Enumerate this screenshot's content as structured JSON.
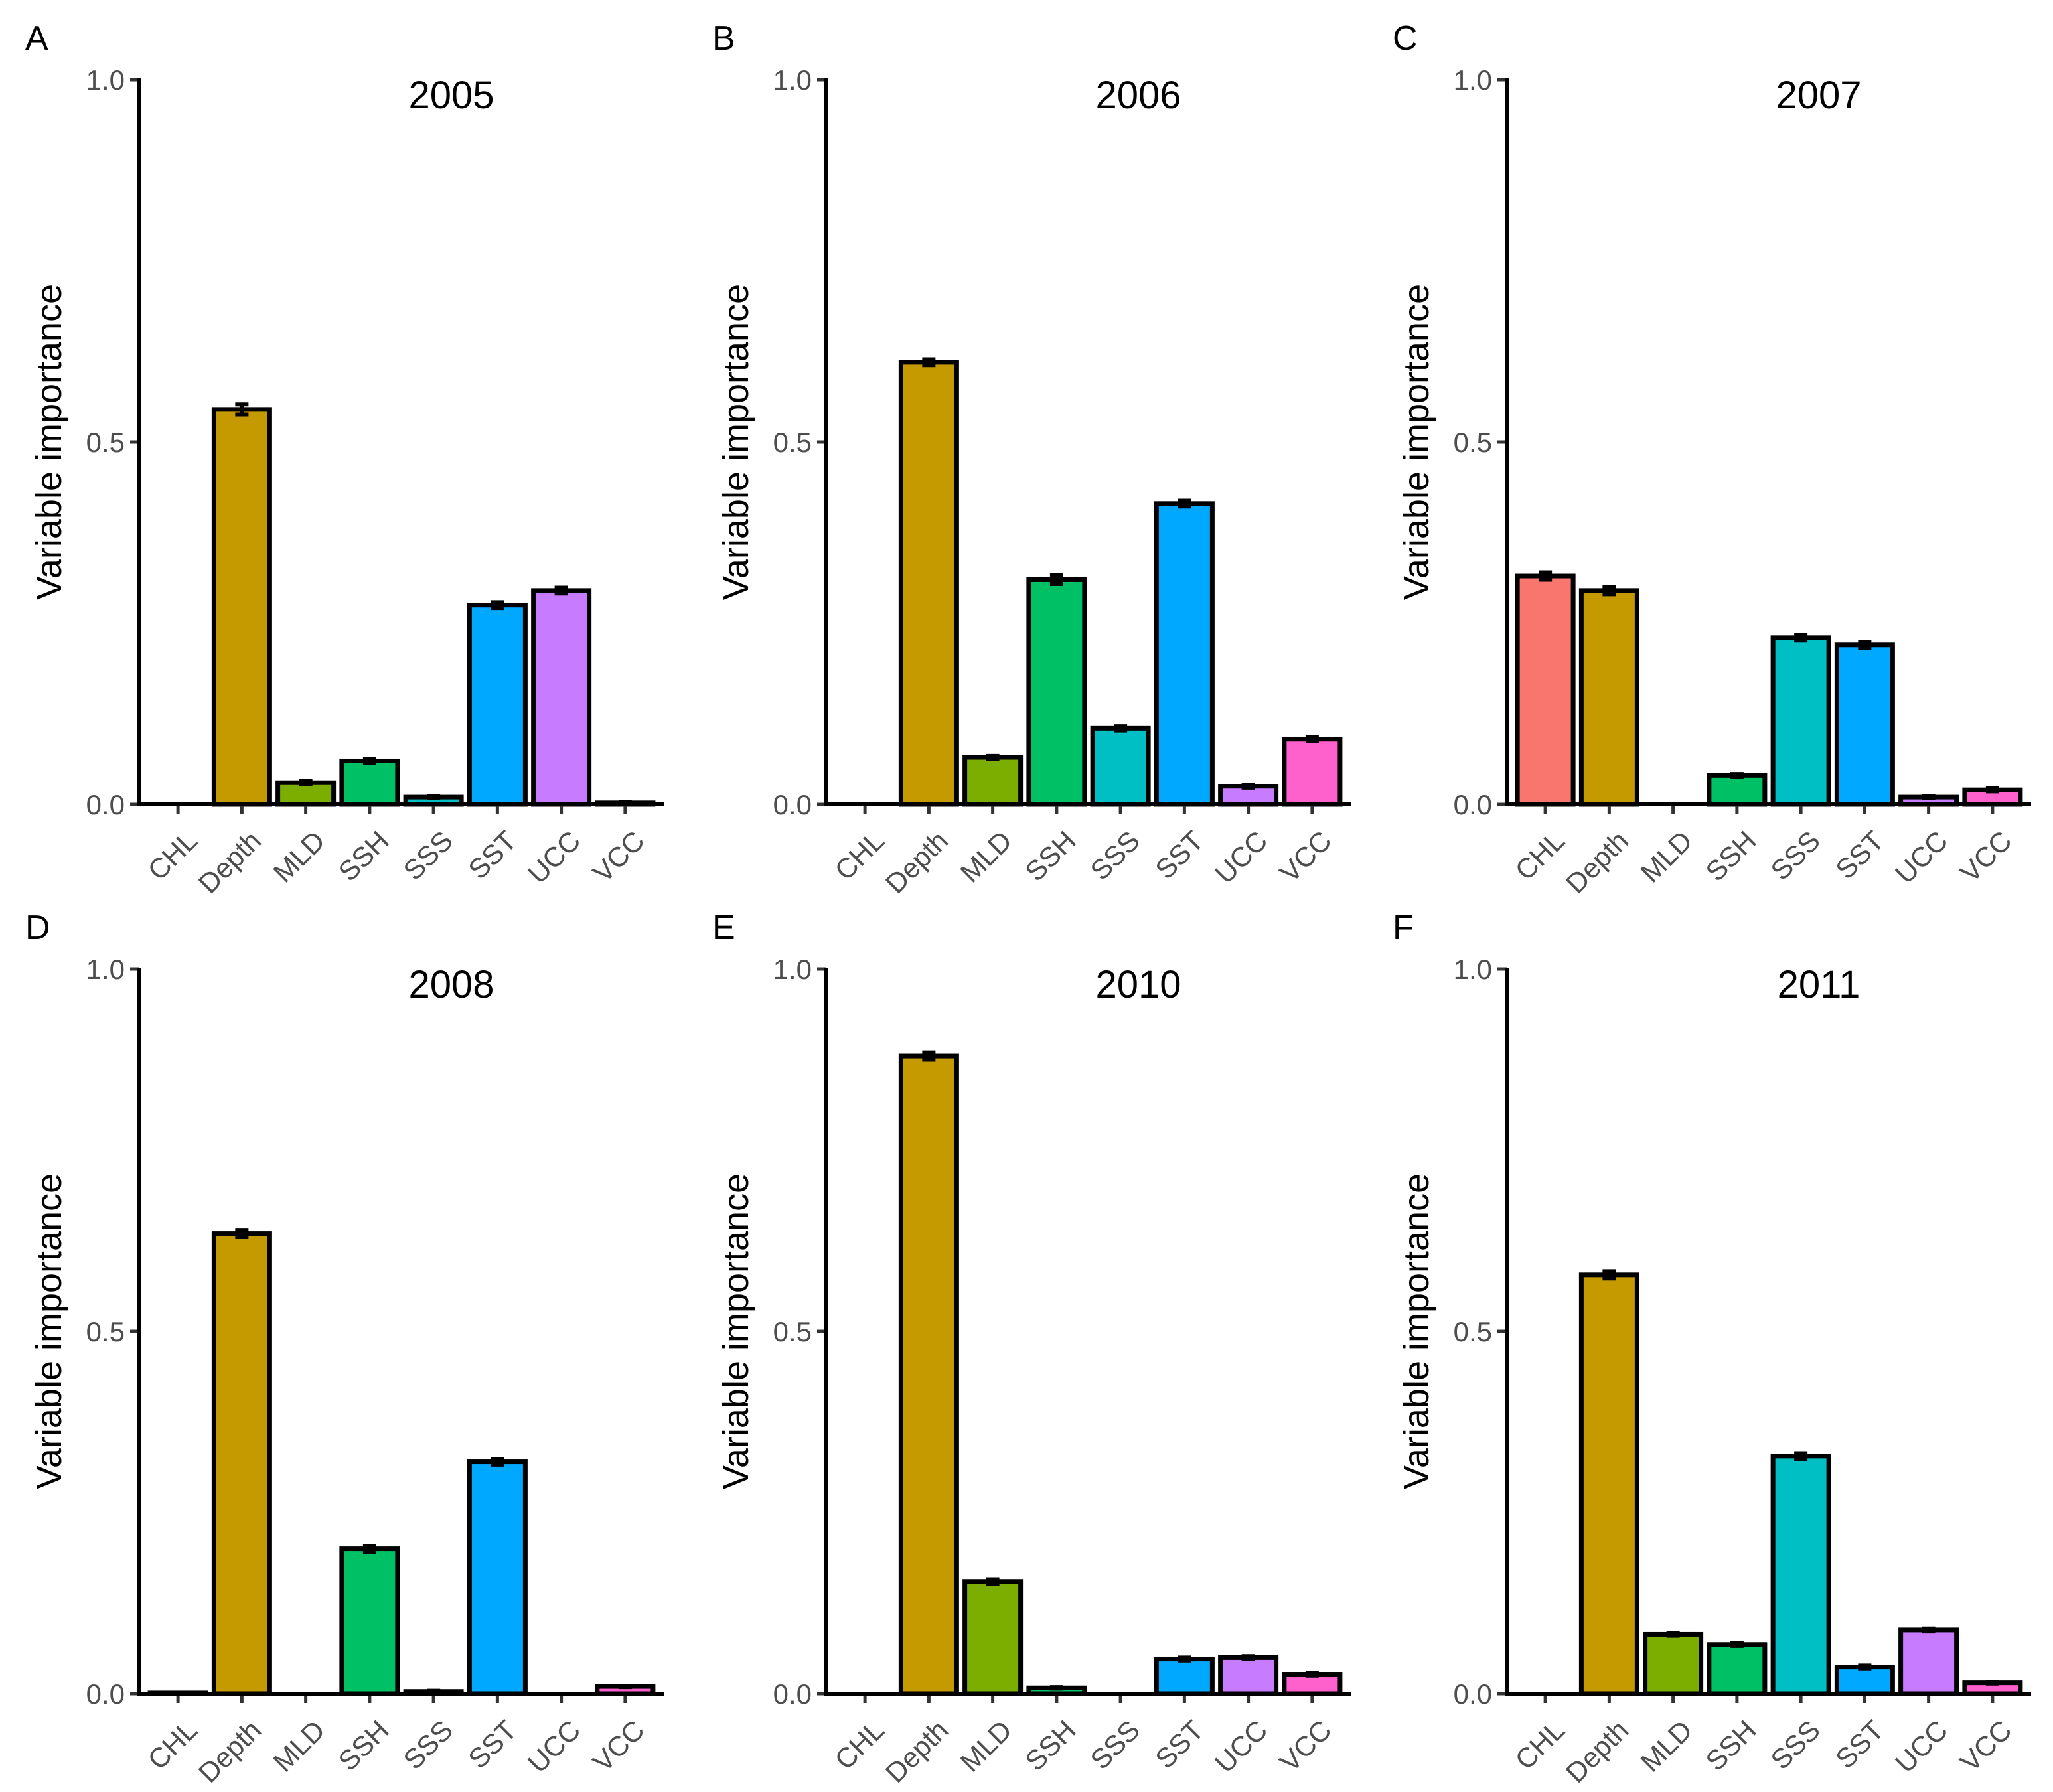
{
  "chart_data": [
    {
      "panel": "A",
      "type": "bar",
      "title": "2005",
      "xlabel": "",
      "ylabel": "Variable importance",
      "ylim": [
        0,
        1.0
      ],
      "yticks": [
        "0.0",
        "0.5",
        "1.0"
      ],
      "categories": [
        "CHL",
        "Depth",
        "MLD",
        "SSH",
        "SSS",
        "SST",
        "UCC",
        "VCC"
      ],
      "values": [
        0.0,
        0.545,
        0.03,
        0.06,
        0.01,
        0.275,
        0.295,
        0.002
      ],
      "errors": [
        0.0,
        0.007,
        0.002,
        0.003,
        0.001,
        0.004,
        0.004,
        0.001
      ],
      "colors": [
        "#F8766D",
        "#C49A00",
        "#7CAE00",
        "#00C066",
        "#00BFC4",
        "#00A9FF",
        "#C77CFF",
        "#FF61CC"
      ]
    },
    {
      "panel": "B",
      "type": "bar",
      "title": "2006",
      "xlabel": "",
      "ylabel": "Variable importance",
      "ylim": [
        0,
        1.0
      ],
      "yticks": [
        "0.0",
        "0.5",
        "1.0"
      ],
      "categories": [
        "CHL",
        "Depth",
        "MLD",
        "SSH",
        "SSS",
        "SST",
        "UCC",
        "VCC"
      ],
      "values": [
        0.0,
        0.61,
        0.065,
        0.31,
        0.105,
        0.415,
        0.025,
        0.09
      ],
      "errors": [
        0.0,
        0.004,
        0.002,
        0.006,
        0.003,
        0.004,
        0.002,
        0.003
      ],
      "colors": [
        "#F8766D",
        "#C49A00",
        "#7CAE00",
        "#00C066",
        "#00BFC4",
        "#00A9FF",
        "#C77CFF",
        "#FF61CC"
      ]
    },
    {
      "panel": "C",
      "type": "bar",
      "title": "2007",
      "xlabel": "",
      "ylabel": "Variable importance",
      "ylim": [
        0,
        1.0
      ],
      "yticks": [
        "0.0",
        "0.5",
        "1.0"
      ],
      "categories": [
        "CHL",
        "Depth",
        "MLD",
        "SSH",
        "SSS",
        "SST",
        "UCC",
        "VCC"
      ],
      "values": [
        0.315,
        0.295,
        0.0,
        0.04,
        0.23,
        0.22,
        0.01,
        0.02
      ],
      "errors": [
        0.005,
        0.005,
        0.0,
        0.002,
        0.004,
        0.004,
        0.001,
        0.002
      ],
      "colors": [
        "#F8766D",
        "#C49A00",
        "#7CAE00",
        "#00C066",
        "#00BFC4",
        "#00A9FF",
        "#C77CFF",
        "#FF61CC"
      ]
    },
    {
      "panel": "D",
      "type": "bar",
      "title": "2008",
      "xlabel": "",
      "ylabel": "Variable importance",
      "ylim": [
        0,
        1.0
      ],
      "yticks": [
        "0.0",
        "0.5",
        "1.0"
      ],
      "categories": [
        "CHL",
        "Depth",
        "MLD",
        "SSH",
        "SSS",
        "SST",
        "UCC",
        "VCC"
      ],
      "values": [
        0.001,
        0.635,
        0.0,
        0.2,
        0.003,
        0.32,
        0.0,
        0.01
      ],
      "errors": [
        0.0,
        0.005,
        0.0,
        0.004,
        0.001,
        0.004,
        0.0,
        0.001
      ],
      "colors": [
        "#F8766D",
        "#C49A00",
        "#7CAE00",
        "#00C066",
        "#00BFC4",
        "#00A9FF",
        "#C77CFF",
        "#FF61CC"
      ]
    },
    {
      "panel": "E",
      "type": "bar",
      "title": "2010",
      "xlabel": "",
      "ylabel": "Variable importance",
      "ylim": [
        0,
        1.0
      ],
      "yticks": [
        "0.0",
        "0.5",
        "1.0"
      ],
      "categories": [
        "CHL",
        "Depth",
        "MLD",
        "SSH",
        "SSS",
        "SST",
        "UCC",
        "VCC"
      ],
      "values": [
        0.0,
        0.88,
        0.155,
        0.008,
        0.0,
        0.048,
        0.05,
        0.027
      ],
      "errors": [
        0.0,
        0.005,
        0.003,
        0.001,
        0.0,
        0.002,
        0.002,
        0.002
      ],
      "colors": [
        "#F8766D",
        "#C49A00",
        "#7CAE00",
        "#00C066",
        "#00BFC4",
        "#00A9FF",
        "#C77CFF",
        "#FF61CC"
      ]
    },
    {
      "panel": "F",
      "type": "bar",
      "title": "2011",
      "xlabel": "",
      "ylabel": "Variable importance",
      "ylim": [
        0,
        1.0
      ],
      "yticks": [
        "0.0",
        "0.5",
        "1.0"
      ],
      "categories": [
        "CHL",
        "Depth",
        "MLD",
        "SSH",
        "SSS",
        "SST",
        "UCC",
        "VCC"
      ],
      "values": [
        0.0,
        0.578,
        0.082,
        0.068,
        0.328,
        0.037,
        0.088,
        0.015
      ],
      "errors": [
        0.0,
        0.005,
        0.002,
        0.002,
        0.004,
        0.002,
        0.002,
        0.001
      ],
      "colors": [
        "#F8766D",
        "#C49A00",
        "#7CAE00",
        "#00C066",
        "#00BFC4",
        "#00A9FF",
        "#C77CFF",
        "#FF61CC"
      ]
    }
  ]
}
